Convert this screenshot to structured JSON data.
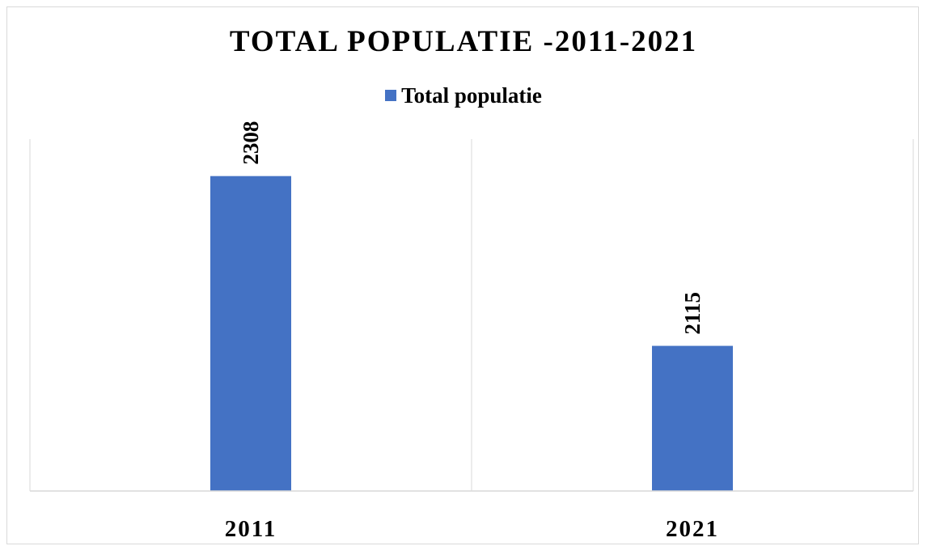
{
  "chart_data": {
    "type": "bar",
    "title": "TOTAL POPULATIE -2011-2021",
    "categories": [
      "2011",
      "2021"
    ],
    "series": [
      {
        "name": "Total populatie",
        "values": [
          2308,
          2115
        ],
        "color": "#4472C4"
      }
    ],
    "legend_position": "top",
    "ylim": [
      1950,
      2350
    ],
    "xlabel": "",
    "ylabel": "",
    "grid": false,
    "data_labels": [
      "2308",
      "2115"
    ],
    "data_label_orientation": "vertical",
    "colors": {
      "bar": "#4472C4",
      "axis": "#d9d9d9",
      "frame": "#d9d9d9"
    }
  }
}
